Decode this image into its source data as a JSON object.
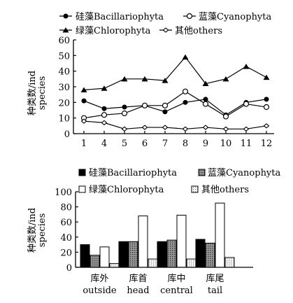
{
  "chart_data": [
    {
      "type": "line",
      "ylabel": [
        "种类数/ind",
        "species"
      ],
      "ylim": [
        0,
        60
      ],
      "yticks": [
        0,
        10,
        20,
        30,
        40,
        50,
        60
      ],
      "x": [
        1,
        4,
        5,
        6,
        7,
        8,
        9,
        10,
        11,
        12
      ],
      "legend_position": "top",
      "series": [
        {
          "name": "硅藻Bacillariophyta",
          "marker": "filled-circle",
          "values": [
            21,
            16,
            17,
            18,
            14,
            20,
            22,
            12,
            20,
            22
          ]
        },
        {
          "name": "蓝藻Cyanophyta",
          "marker": "open-circle",
          "values": [
            10,
            12,
            13,
            18,
            18,
            27,
            19,
            11,
            19,
            17
          ]
        },
        {
          "name": "绿藻Chlorophyta",
          "marker": "filled-triangle",
          "values": [
            28,
            29,
            35,
            35,
            34,
            49,
            32,
            35,
            43,
            36
          ]
        },
        {
          "name": "其他others",
          "marker": "open-diamond",
          "values": [
            8,
            7,
            3,
            4,
            4,
            3,
            4,
            3,
            3,
            5
          ]
        }
      ]
    },
    {
      "type": "bar",
      "ylabel": [
        "种类数/ind",
        "species"
      ],
      "ylim": [
        0,
        100
      ],
      "yticks": [
        0,
        20,
        40,
        60,
        80,
        100
      ],
      "categories": [
        {
          "zh": "库外",
          "en": "outside"
        },
        {
          "zh": "库首",
          "en": "head"
        },
        {
          "zh": "库中",
          "en": "central"
        },
        {
          "zh": "库尾",
          "en": "tail"
        }
      ],
      "legend_position": "top",
      "series": [
        {
          "name": "硅藻Bacillariophyta",
          "fill": "#000000",
          "values": [
            30,
            34,
            34,
            37
          ]
        },
        {
          "name": "蓝藻Cyanophyta",
          "fill": "#7a7a7a",
          "values": [
            16,
            34,
            36,
            32
          ]
        },
        {
          "name": "绿藻Chlorophyta",
          "fill": "#ffffff",
          "values": [
            27,
            68,
            69,
            85
          ]
        },
        {
          "name": "其他others",
          "fill": "#d4d4d4",
          "values": [
            5,
            11,
            11,
            13
          ]
        }
      ]
    }
  ]
}
